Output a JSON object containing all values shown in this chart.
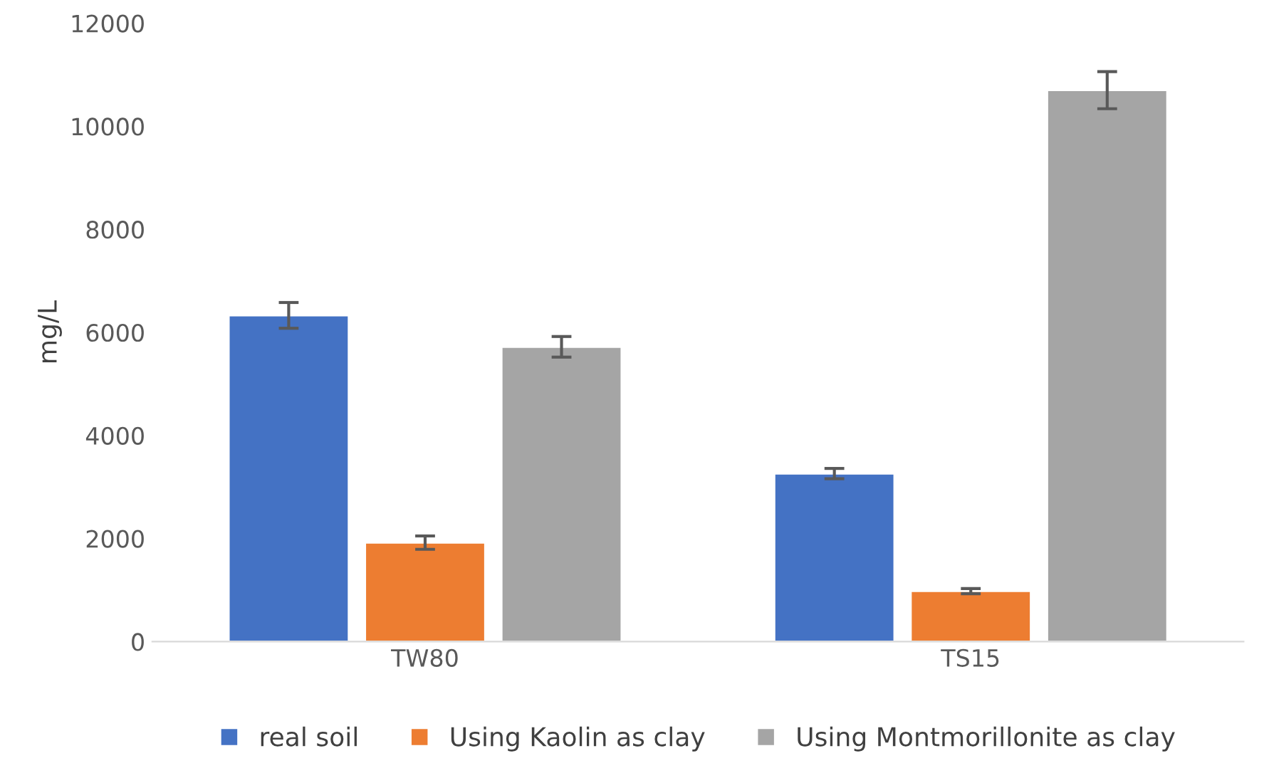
{
  "chart_data": {
    "type": "bar",
    "ylabel": "mg/L",
    "categories": [
      "TW80",
      "TS15"
    ],
    "series": [
      {
        "name": "real soil",
        "color": "#4472c4",
        "values": [
          6330,
          3260
        ],
        "errors": [
          250,
          100
        ]
      },
      {
        "name": "Using Kaolin as clay",
        "color": "#ed7d31",
        "values": [
          1920,
          980
        ],
        "errors": [
          130,
          50
        ]
      },
      {
        "name": "Using Montmorillonite as clay",
        "color": "#a5a5a5",
        "values": [
          5720,
          10700
        ],
        "errors": [
          200,
          360
        ]
      }
    ],
    "ylim": [
      0,
      12000
    ],
    "yticks": [
      0,
      2000,
      4000,
      6000,
      8000,
      10000,
      12000
    ],
    "grid": false,
    "legend": "bottom"
  }
}
